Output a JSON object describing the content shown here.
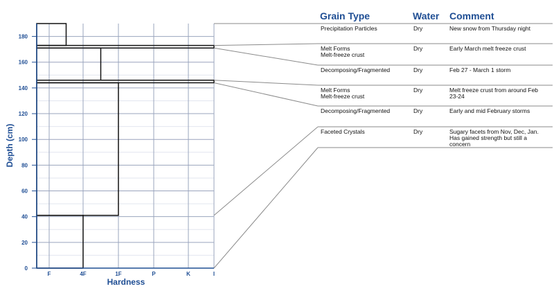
{
  "colors": {
    "axis": "#1f4e94",
    "grid": "#9aa4bd",
    "bar": "#111111",
    "connector": "#8a8a8a"
  },
  "chart_data": {
    "type": "bar",
    "orientation": "horizontal",
    "ylabel": "Depth (cm)",
    "xlabel": "Hardness",
    "ylim": [
      0,
      190
    ],
    "yticks": [
      0,
      20,
      40,
      60,
      80,
      100,
      120,
      140,
      160,
      180
    ],
    "hardness_categories": [
      "F",
      "4F",
      "1F",
      "P",
      "K",
      "I"
    ],
    "grid": true,
    "layers": [
      {
        "bottom": 173,
        "top": 190,
        "hardness": "F+"
      },
      {
        "bottom": 171,
        "top": 173,
        "hardness": "I"
      },
      {
        "bottom": 146,
        "top": 171,
        "hardness": "1F-"
      },
      {
        "bottom": 144,
        "top": 146,
        "hardness": "I"
      },
      {
        "bottom": 41,
        "top": 144,
        "hardness": "1F"
      },
      {
        "bottom": 0,
        "top": 41,
        "hardness": "4F"
      }
    ]
  },
  "table": {
    "headers": {
      "grain": "Grain Type",
      "water": "Water",
      "comment": "Comment"
    },
    "rows": [
      {
        "grain": "Precipitation Particles",
        "grain2": "",
        "water": "Dry",
        "comment": "New snow from Thursday night"
      },
      {
        "grain": "Melt Forms",
        "grain2": "Melt-freeze crust",
        "water": "Dry",
        "comment": "Early March melt freeze crust"
      },
      {
        "grain": "Decomposing/Fragmented",
        "grain2": "",
        "water": "Dry",
        "comment": "Feb 27 - March 1 storm"
      },
      {
        "grain": "Melt Forms",
        "grain2": "Melt-freeze crust",
        "water": "Dry",
        "comment": "Melt freeze crust from around Feb 23-24"
      },
      {
        "grain": "Decomposing/Fragmented",
        "grain2": "",
        "water": "Dry",
        "comment": "Early and mid February storms"
      },
      {
        "grain": "Faceted Crystals",
        "grain2": "",
        "water": "Dry",
        "comment": "Sugary facets from Nov, Dec, Jan. Has gained strength but still a concern"
      }
    ]
  }
}
